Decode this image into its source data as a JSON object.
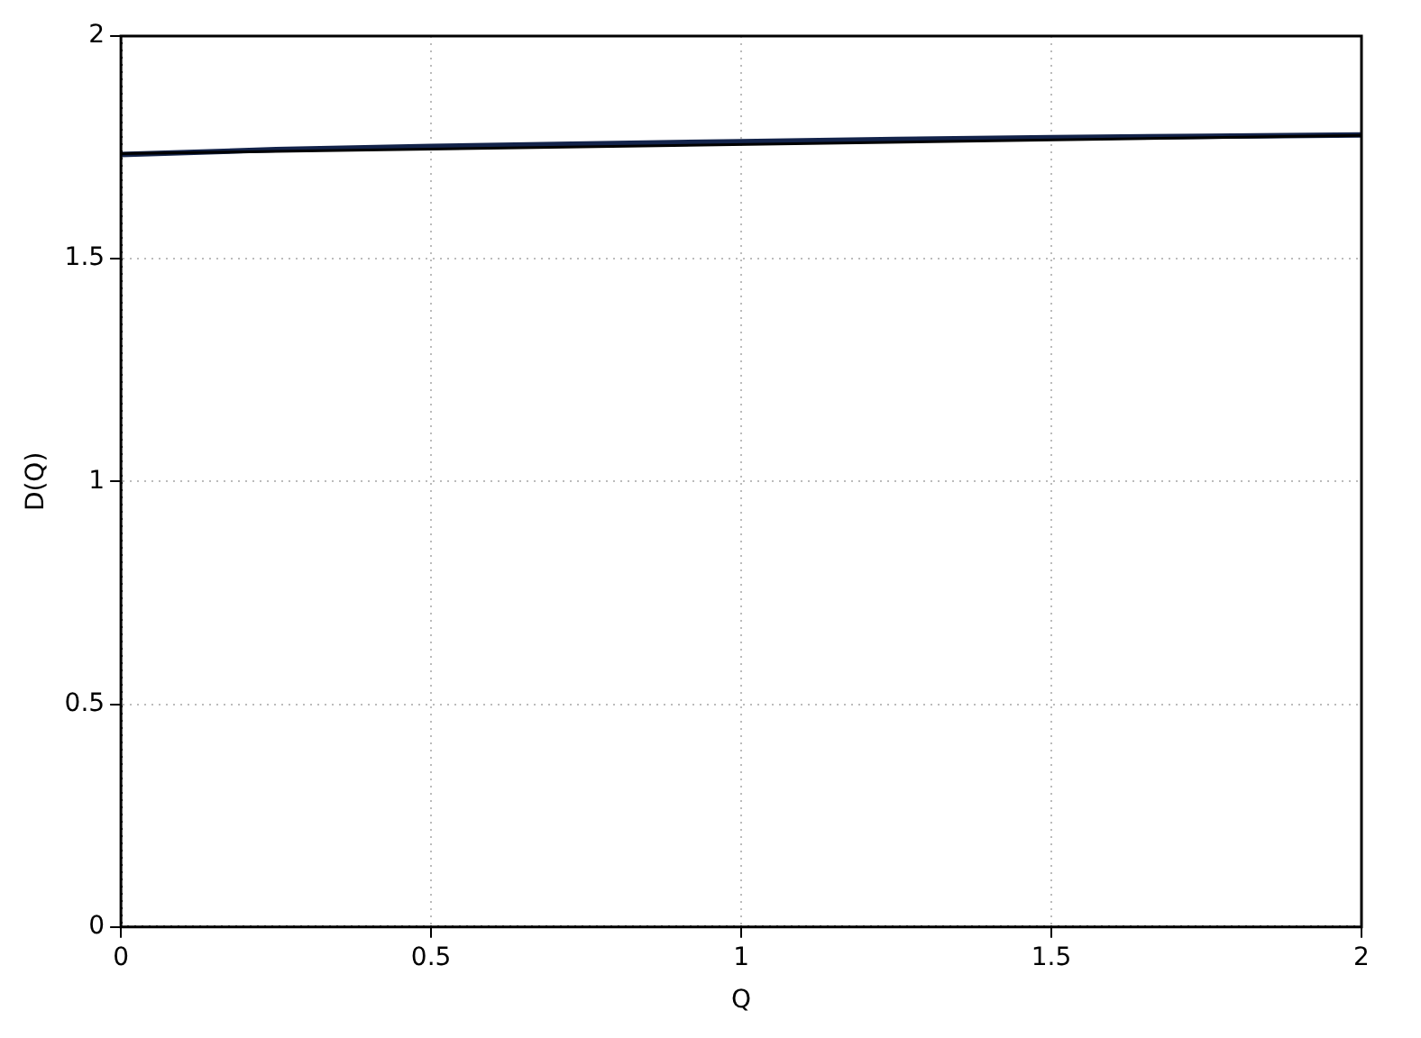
{
  "chart_data": {
    "type": "line",
    "xlabel": "Q",
    "ylabel": "D(Q)",
    "xlim": [
      0,
      2
    ],
    "ylim": [
      0,
      2
    ],
    "xticks": [
      0,
      0.5,
      1,
      1.5,
      2
    ],
    "yticks": [
      0,
      0.5,
      1,
      1.5,
      2
    ],
    "grid": true,
    "legend": false,
    "series": [
      {
        "color": "#13234a",
        "x": [
          0,
          0.25,
          0.5,
          0.75,
          1,
          1.25,
          1.5,
          1.75,
          2
        ],
        "values": [
          1.734,
          1.745,
          1.752,
          1.758,
          1.763,
          1.768,
          1.772,
          1.775,
          1.778
        ]
      },
      {
        "color": "#000000",
        "x": [
          0,
          2
        ],
        "values": [
          1.736,
          1.777
        ]
      }
    ]
  }
}
